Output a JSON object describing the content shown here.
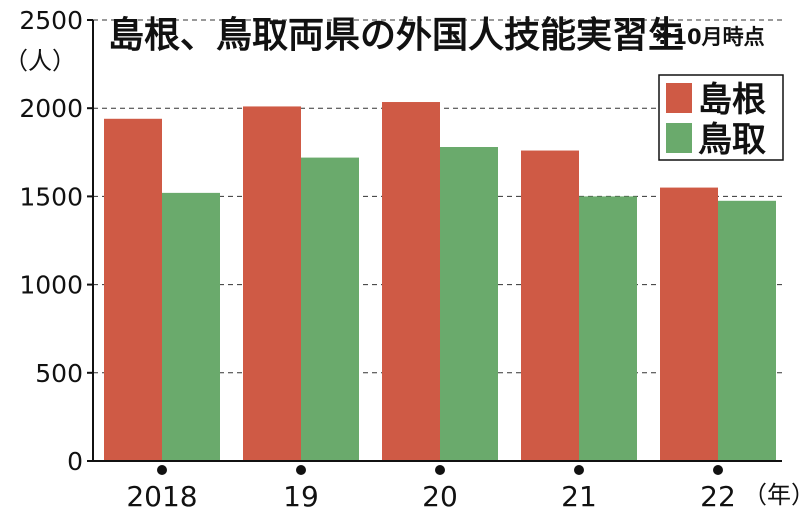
{
  "chart_data": {
    "type": "bar",
    "title": "島根、鳥取両県の外国人技能実習生",
    "note": "※10月時点",
    "ylabel": "（人）",
    "xunit": "（年）",
    "categories": [
      "2018",
      "19",
      "20",
      "21",
      "22"
    ],
    "series": [
      {
        "name": "島根",
        "color": "#cf5a45",
        "values": [
          1940,
          2010,
          2035,
          1760,
          1550
        ]
      },
      {
        "name": "鳥取",
        "color": "#6aaa6c",
        "values": [
          1520,
          1720,
          1780,
          1500,
          1475
        ]
      }
    ],
    "ylim": [
      0,
      2500
    ],
    "yticks": [
      "0",
      "500",
      "1000",
      "1500",
      "2000",
      "2500"
    ],
    "ytick_values": [
      0,
      500,
      1000,
      1500,
      2000,
      2500
    ],
    "grid": "dashed horizontal",
    "legend_position": "top-right"
  }
}
